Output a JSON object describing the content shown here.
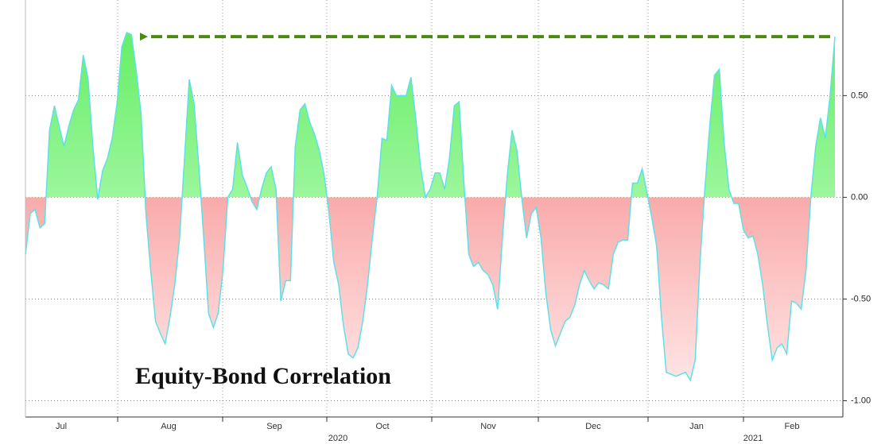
{
  "chart_data": {
    "type": "area",
    "title": "Equity-Bond Correlation",
    "x_labels": [
      "Jul",
      "Aug",
      "Sep",
      "Oct",
      "Nov",
      "Dec",
      "Jan",
      "Feb"
    ],
    "year_labels": [
      "2020",
      "2021"
    ],
    "values": [
      -0.28,
      -0.08,
      -0.06,
      -0.15,
      -0.13,
      0.33,
      0.45,
      0.35,
      0.25,
      0.35,
      0.43,
      0.48,
      0.7,
      0.58,
      0.25,
      -0.01,
      0.13,
      0.19,
      0.29,
      0.46,
      0.74,
      0.81,
      0.8,
      0.62,
      0.41,
      -0.08,
      -0.36,
      -0.61,
      -0.67,
      -0.72,
      -0.59,
      -0.43,
      -0.2,
      0.19,
      0.58,
      0.46,
      0.15,
      -0.2,
      -0.57,
      -0.64,
      -0.57,
      -0.36,
      0,
      0.04,
      0.27,
      0.11,
      0.05,
      -0.02,
      -0.06,
      0.04,
      0.12,
      0.15,
      0.04,
      -0.51,
      -0.41,
      -0.41,
      0.25,
      0.43,
      0.46,
      0.37,
      0.31,
      0.23,
      0.11,
      -0.08,
      -0.32,
      -0.43,
      -0.63,
      -0.77,
      -0.79,
      -0.74,
      -0.61,
      -0.43,
      -0.2,
      0,
      0.29,
      0.28,
      0.55,
      0.5,
      0.5,
      0.5,
      0.59,
      0.39,
      0.15,
      0,
      0.04,
      0.12,
      0.12,
      0.04,
      0.19,
      0.45,
      0.47,
      0.07,
      -0.28,
      -0.34,
      -0.32,
      -0.36,
      -0.38,
      -0.43,
      -0.55,
      -0.2,
      0.11,
      0.33,
      0.23,
      0,
      -0.2,
      -0.08,
      -0.05,
      -0.2,
      -0.47,
      -0.65,
      -0.73,
      -0.67,
      -0.61,
      -0.59,
      -0.53,
      -0.43,
      -0.36,
      -0.41,
      -0.45,
      -0.42,
      -0.43,
      -0.45,
      -0.28,
      -0.22,
      -0.21,
      -0.21,
      0.07,
      0.07,
      0.14,
      0.02,
      -0.1,
      -0.24,
      -0.59,
      -0.86,
      -0.87,
      -0.88,
      -0.87,
      -0.86,
      -0.9,
      -0.8,
      -0.32,
      0.04,
      0.35,
      0.6,
      0.63,
      0.27,
      0.04,
      -0.03,
      -0.03,
      -0.16,
      -0.2,
      -0.19,
      -0.28,
      -0.43,
      -0.63,
      -0.8,
      -0.74,
      -0.72,
      -0.77,
      -0.51,
      -0.52,
      -0.55,
      -0.36,
      0,
      0.25,
      0.39,
      0.29,
      0.5,
      0.79
    ],
    "line_color": "#5fe0e8",
    "positive_color": "#66ee66",
    "negative_color": "#f47777",
    "arrow_color": "#4a8a10",
    "ylim": [
      -1.08,
      0.97
    ],
    "yticks": [
      {
        "value": 0.5,
        "label": "0.50"
      },
      {
        "value": 0,
        "label": "0.00"
      },
      {
        "value": -0.5,
        "label": "-0.50"
      },
      {
        "value": -1,
        "label": "-1.00"
      }
    ],
    "grid": true
  }
}
